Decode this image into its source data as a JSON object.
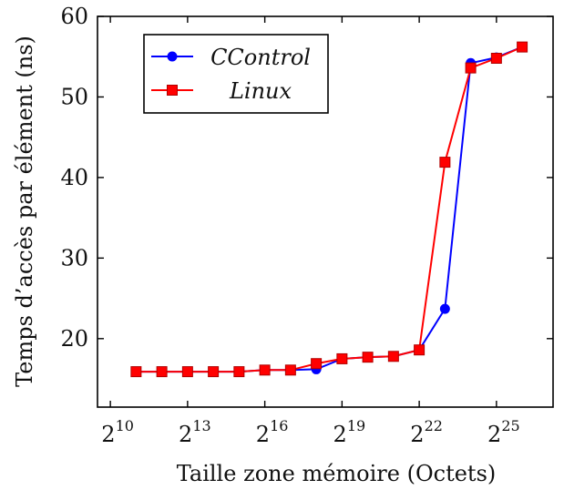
{
  "chart_data": {
    "type": "line",
    "xlabel": "Taille zone mémoire (Octets)",
    "ylabel": "Temps d’accès par élément (ns)",
    "x_scale": "log2",
    "x": [
      11,
      12,
      13,
      14,
      15,
      16,
      17,
      18,
      19,
      20,
      21,
      22,
      23,
      24,
      25,
      26
    ],
    "xlim": [
      9.5,
      27.2
    ],
    "ylim": [
      11.5,
      60
    ],
    "grid": false,
    "legend_position": "top-left",
    "x_ticks": [
      {
        "base": "2",
        "exp": "10",
        "value": 10
      },
      {
        "base": "2",
        "exp": "13",
        "value": 13
      },
      {
        "base": "2",
        "exp": "16",
        "value": 16
      },
      {
        "base": "2",
        "exp": "19",
        "value": 19
      },
      {
        "base": "2",
        "exp": "22",
        "value": 22
      },
      {
        "base": "2",
        "exp": "25",
        "value": 25
      }
    ],
    "y_ticks": [
      {
        "label": "20",
        "value": 20
      },
      {
        "label": "30",
        "value": 30
      },
      {
        "label": "40",
        "value": 40
      },
      {
        "label": "50",
        "value": 50
      },
      {
        "label": "60",
        "value": 60
      }
    ],
    "series": [
      {
        "name": "CControl",
        "color": "#0000ff",
        "marker": "circle",
        "values": [
          15.9,
          15.9,
          15.9,
          15.9,
          15.9,
          16.1,
          16.1,
          16.2,
          17.5,
          17.7,
          17.8,
          18.6,
          23.7,
          54.2,
          54.9,
          56.2
        ]
      },
      {
        "name": "Linux",
        "color": "#ff0000",
        "marker": "square",
        "values": [
          15.9,
          15.9,
          15.9,
          15.9,
          15.9,
          16.1,
          16.1,
          16.9,
          17.5,
          17.7,
          17.8,
          18.6,
          41.9,
          53.6,
          54.8,
          56.2
        ]
      }
    ]
  }
}
